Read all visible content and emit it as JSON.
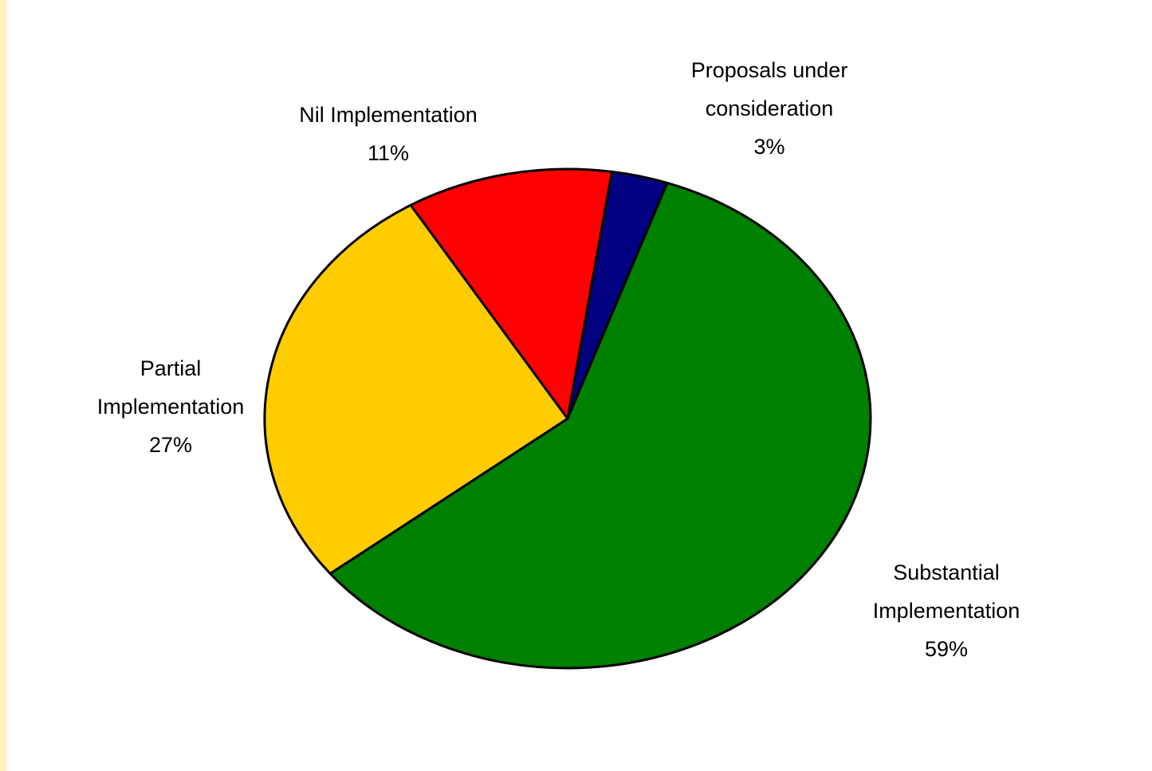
{
  "chart_data": {
    "type": "pie",
    "slices": [
      {
        "label_lines": [
          "Proposals under",
          "consideration"
        ],
        "percent_label": "3%",
        "value": 3,
        "color": "#000080"
      },
      {
        "label_lines": [
          "Substantial",
          "Implementation"
        ],
        "percent_label": "59%",
        "value": 59,
        "color": "#008000"
      },
      {
        "label_lines": [
          "Partial",
          "Implementation"
        ],
        "percent_label": "27%",
        "value": 27,
        "color": "#ffcc00"
      },
      {
        "label_lines": [
          "Nil Implementation"
        ],
        "percent_label": "11%",
        "value": 11,
        "color": "#ff0000"
      }
    ],
    "legend": "none",
    "border_color": "#000000"
  }
}
